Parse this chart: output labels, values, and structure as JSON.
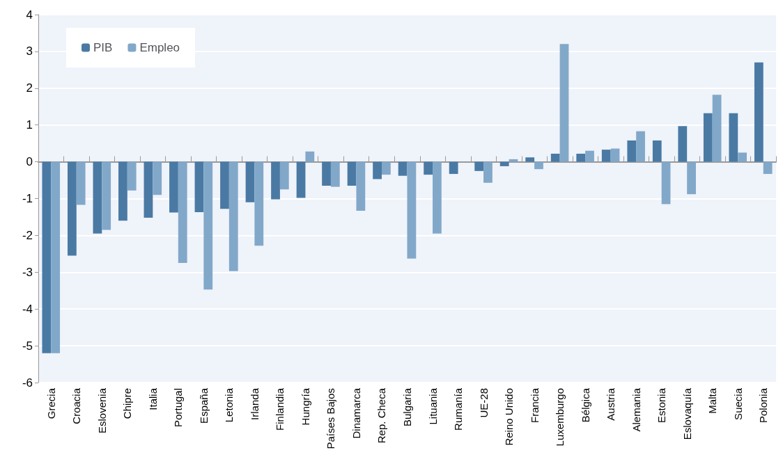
{
  "chart_data": {
    "type": "bar",
    "categories": [
      "Grecia",
      "Croacia",
      "Eslovenia",
      "Chipre",
      "Italia",
      "Portugal",
      "España",
      "Letonia",
      "Irlanda",
      "Finlandia",
      "Hungría",
      "Países Bajos",
      "Dinamarca",
      "Rep. Checa",
      "Bulgaria",
      "Lituania",
      "Rumanía",
      "UE-28",
      "Reino Unido",
      "Francia",
      "Luxemburgo",
      "Bélgica",
      "Austria",
      "Alemania",
      "Estonia",
      "Eslovaquía",
      "Malta",
      "Suecia",
      "Polonia"
    ],
    "series": [
      {
        "name": "PIB",
        "color": "#4a7aa4",
        "values": [
          -5.2,
          -2.55,
          -1.95,
          -1.6,
          -1.52,
          -1.38,
          -1.37,
          -1.28,
          -1.1,
          -1.02,
          -0.98,
          -0.65,
          -0.65,
          -0.47,
          -0.38,
          -0.35,
          -0.33,
          -0.25,
          -0.12,
          0.12,
          0.22,
          0.22,
          0.33,
          0.58,
          0.58,
          0.97,
          1.32,
          1.32,
          2.7
        ]
      },
      {
        "name": "Empleo",
        "color": "#82a8c9",
        "values": [
          -5.2,
          -1.17,
          -1.85,
          -0.78,
          -0.9,
          -2.75,
          -3.47,
          -2.97,
          -2.28,
          -0.75,
          0.28,
          -0.68,
          -1.33,
          -0.35,
          -2.63,
          -1.95,
          0,
          -0.57,
          0.07,
          -0.2,
          3.2,
          0.3,
          0.36,
          0.83,
          -1.15,
          -0.88,
          1.82,
          0.25,
          -0.33
        ]
      }
    ],
    "ylim": [
      -6,
      4
    ],
    "yticks": [
      -6,
      -5,
      -4,
      -3,
      -2,
      -1,
      0,
      1,
      2,
      3,
      4
    ],
    "grid": "y",
    "legend": "top left"
  }
}
